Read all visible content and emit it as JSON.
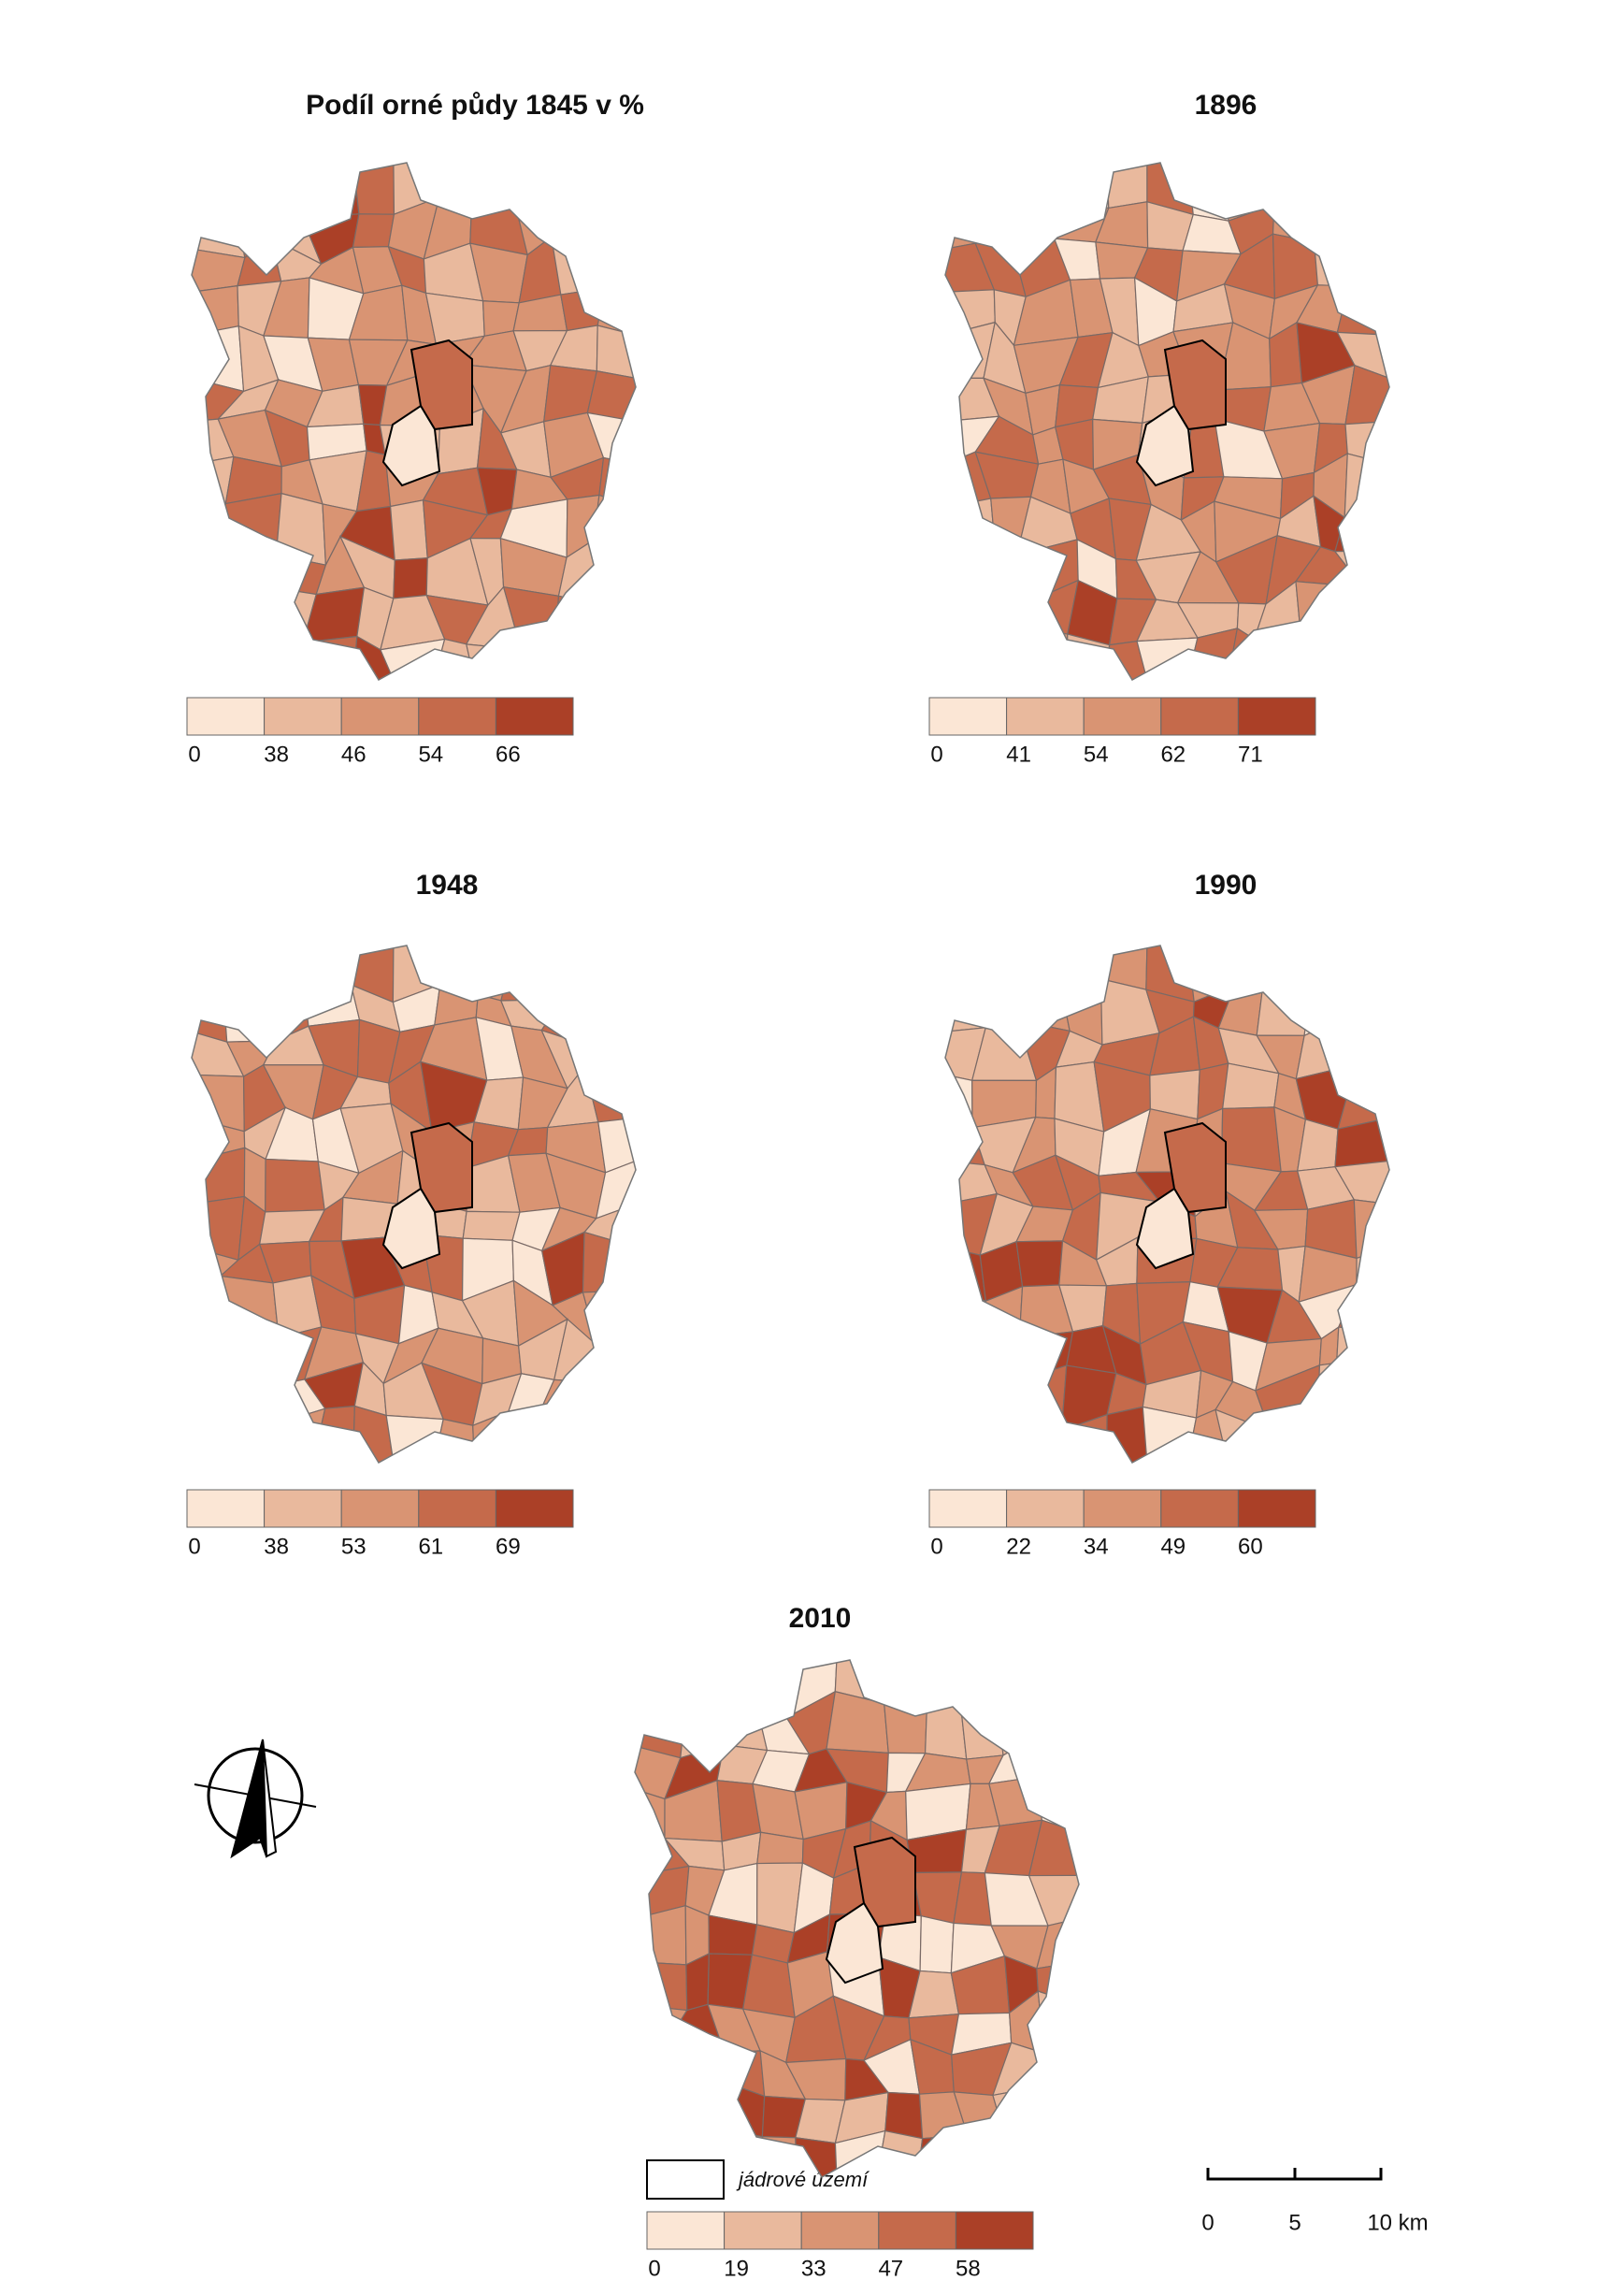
{
  "maps": [
    {
      "title": "Podíl orné půdy 1845 v %",
      "legend": [
        0,
        38,
        46,
        54,
        66
      ]
    },
    {
      "title": "1896",
      "legend": [
        0,
        41,
        54,
        62,
        71
      ]
    },
    {
      "title": "1948",
      "legend": [
        0,
        38,
        53,
        61,
        69
      ]
    },
    {
      "title": "1990",
      "legend": [
        0,
        22,
        34,
        49,
        60
      ]
    },
    {
      "title": "2010",
      "legend": [
        0,
        19,
        33,
        47,
        58
      ]
    }
  ],
  "legend_colors": [
    "#fbe6d5",
    "#e9b99d",
    "#d99473",
    "#c56a4b",
    "#ab4027"
  ],
  "core_legend": "jádrové území",
  "scale_bar": [
    "0",
    "5",
    "10 km"
  ]
}
